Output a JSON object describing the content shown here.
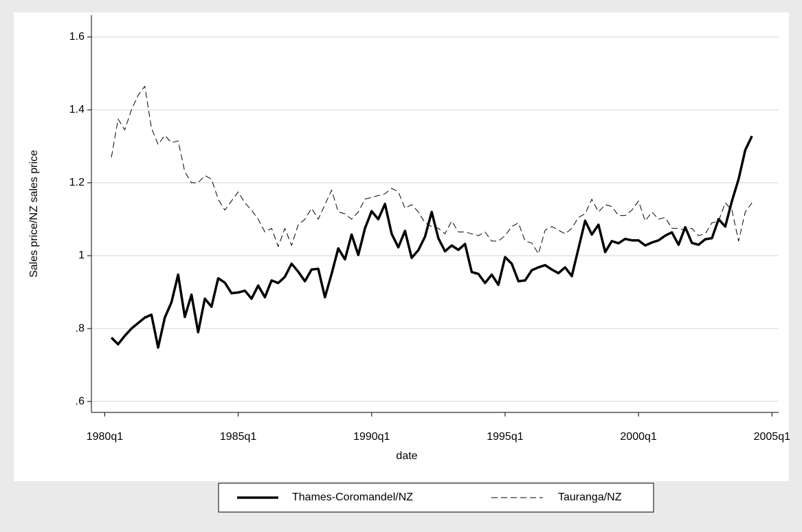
{
  "chart_data": {
    "type": "line",
    "y_label": "Sales price/NZ sales price",
    "x_label": "date",
    "x": [
      "1980q2",
      "1980q3",
      "1980q4",
      "1981q1",
      "1981q2",
      "1981q3",
      "1981q4",
      "1982q1",
      "1982q2",
      "1982q3",
      "1982q4",
      "1983q1",
      "1983q2",
      "1983q3",
      "1983q4",
      "1984q1",
      "1984q2",
      "1984q3",
      "1984q4",
      "1985q1",
      "1985q2",
      "1985q3",
      "1985q4",
      "1986q1",
      "1986q2",
      "1986q3",
      "1986q4",
      "1987q1",
      "1987q2",
      "1987q3",
      "1987q4",
      "1988q1",
      "1988q2",
      "1988q3",
      "1988q4",
      "1989q1",
      "1989q2",
      "1989q3",
      "1989q4",
      "1990q1",
      "1990q2",
      "1990q3",
      "1990q4",
      "1991q1",
      "1991q2",
      "1991q3",
      "1991q4",
      "1992q1",
      "1992q2",
      "1992q3",
      "1992q4",
      "1993q1",
      "1993q2",
      "1993q3",
      "1993q4",
      "1994q1",
      "1994q2",
      "1994q3",
      "1994q4",
      "1995q1",
      "1995q2",
      "1995q3",
      "1995q4",
      "1996q1",
      "1996q2",
      "1996q3",
      "1996q4",
      "1997q1",
      "1997q2",
      "1997q3",
      "1997q4",
      "1998q1",
      "1998q2",
      "1998q3",
      "1998q4",
      "1999q1",
      "1999q2",
      "1999q3",
      "1999q4",
      "2000q1",
      "2000q2",
      "2000q3",
      "2000q4",
      "2001q1",
      "2001q2",
      "2001q3",
      "2001q4",
      "2002q1",
      "2002q2",
      "2002q3",
      "2002q4",
      "2003q1",
      "2003q2",
      "2003q3",
      "2003q4",
      "2004q1",
      "2004q2"
    ],
    "series": [
      {
        "name": "Thames-Coromandel/NZ",
        "color": "#000000",
        "style": "solid",
        "values": [
          0.775,
          0.757,
          0.78,
          0.8,
          0.815,
          0.83,
          0.838,
          0.748,
          0.83,
          0.872,
          0.948,
          0.832,
          0.893,
          0.79,
          0.882,
          0.86,
          0.938,
          0.926,
          0.897,
          0.899,
          0.904,
          0.882,
          0.918,
          0.886,
          0.932,
          0.925,
          0.942,
          0.978,
          0.956,
          0.93,
          0.962,
          0.964,
          0.886,
          0.95,
          1.02,
          0.99,
          1.058,
          1.002,
          1.075,
          1.122,
          1.1,
          1.142,
          1.06,
          1.023,
          1.068,
          0.994,
          1.015,
          1.052,
          1.12,
          1.048,
          1.012,
          1.028,
          1.016,
          1.032,
          0.955,
          0.95,
          0.925,
          0.948,
          0.92,
          0.996,
          0.978,
          0.93,
          0.932,
          0.96,
          0.968,
          0.974,
          0.962,
          0.952,
          0.968,
          0.944,
          1.02,
          1.096,
          1.058,
          1.085,
          1.01,
          1.04,
          1.034,
          1.046,
          1.042,
          1.042,
          1.028,
          1.036,
          1.042,
          1.055,
          1.064,
          1.03,
          1.078,
          1.035,
          1.03,
          1.045,
          1.048,
          1.1,
          1.08,
          1.15,
          1.21,
          1.29,
          1.328
        ]
      },
      {
        "name": "Tauranga/NZ",
        "color": "#000000",
        "style": "dashed",
        "values": [
          1.27,
          1.375,
          1.345,
          1.4,
          1.44,
          1.465,
          1.35,
          1.305,
          1.33,
          1.31,
          1.315,
          1.23,
          1.2,
          1.2,
          1.22,
          1.21,
          1.155,
          1.125,
          1.15,
          1.175,
          1.145,
          1.125,
          1.1,
          1.065,
          1.075,
          1.025,
          1.075,
          1.028,
          1.085,
          1.1,
          1.13,
          1.1,
          1.14,
          1.18,
          1.12,
          1.115,
          1.1,
          1.12,
          1.155,
          1.16,
          1.165,
          1.17,
          1.185,
          1.175,
          1.13,
          1.14,
          1.12,
          1.09,
          1.08,
          1.075,
          1.06,
          1.095,
          1.065,
          1.065,
          1.06,
          1.055,
          1.065,
          1.04,
          1.04,
          1.055,
          1.08,
          1.09,
          1.04,
          1.035,
          1.005,
          1.07,
          1.08,
          1.07,
          1.06,
          1.075,
          1.105,
          1.115,
          1.155,
          1.12,
          1.14,
          1.135,
          1.11,
          1.11,
          1.125,
          1.15,
          1.095,
          1.12,
          1.1,
          1.105,
          1.075,
          1.075,
          1.07,
          1.075,
          1.055,
          1.06,
          1.09,
          1.095,
          1.145,
          1.125,
          1.04,
          1.12,
          1.145
        ]
      }
    ],
    "xlim": [
      "1979q3",
      "2005q2"
    ],
    "xticks": [
      "1980q1",
      "1985q1",
      "1990q1",
      "1995q1",
      "2000q1",
      "2005q1"
    ],
    "ylim": [
      0.57,
      1.66
    ],
    "yticks": [
      {
        "value": 0.6,
        "label": ".6"
      },
      {
        "value": 0.8,
        "label": ".8"
      },
      1,
      1.2,
      1.4,
      1.6
    ],
    "grid": true,
    "legend": "bottom"
  }
}
